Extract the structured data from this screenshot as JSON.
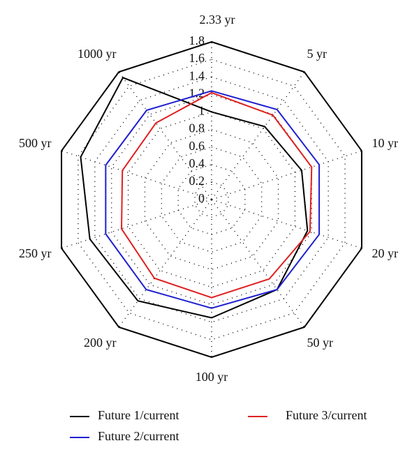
{
  "chart_data": {
    "type": "radar",
    "categories": [
      "2.33 yr",
      "5 yr",
      "10 yr",
      "20 yr",
      "50 yr",
      "100 yr",
      "200 yr",
      "250 yr",
      "500 yr",
      "1000 yr"
    ],
    "rlim": [
      0,
      1.8
    ],
    "rticks": [
      0,
      0.2,
      0.4,
      0.6,
      0.8,
      1,
      1.2,
      1.4,
      1.6,
      1.8
    ],
    "series": [
      {
        "name": "Future 1/current",
        "color": "#000000",
        "values": [
          1.0,
          1.03,
          1.08,
          1.15,
          1.27,
          1.35,
          1.43,
          1.46,
          1.57,
          1.72
        ]
      },
      {
        "name": "Future 2/current",
        "color": "#1f1fd0",
        "values": [
          1.24,
          1.27,
          1.29,
          1.29,
          1.27,
          1.24,
          1.27,
          1.27,
          1.27,
          1.26
        ]
      },
      {
        "name": "Future 3/current",
        "color": "#e02020",
        "values": [
          1.22,
          1.19,
          1.2,
          1.18,
          1.12,
          1.12,
          1.11,
          1.08,
          1.07,
          1.08
        ]
      }
    ]
  }
}
